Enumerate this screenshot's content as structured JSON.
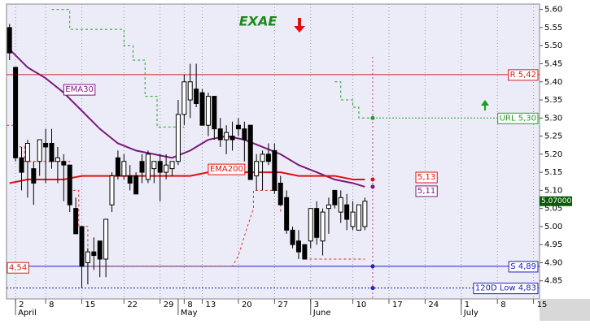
{
  "chart_data": {
    "type": "candlestick",
    "title": "EXAE",
    "open": [
      5.55,
      5.44,
      5.19,
      5.18,
      5.16,
      5.18,
      5.23,
      5.23,
      5.18,
      5.18,
      5.17,
      5.05,
      5.0,
      4.9,
      4.93,
      4.96,
      4.91,
      5.06,
      5.19,
      5.14,
      5.14,
      5.14,
      5.18,
      5.13,
      5.16,
      5.18,
      5.15,
      5.16,
      5.18,
      5.31,
      5.35,
      5.38,
      5.37,
      5.28,
      5.36,
      5.27,
      5.24,
      5.25,
      5.28,
      5.27,
      5.28,
      5.14,
      5.18,
      5.2,
      5.21,
      5.12,
      5.08,
      4.99,
      4.96,
      4.95,
      4.96,
      5.05,
      4.96,
      5.05,
      5.1,
      5.04,
      5.06,
      5.0,
      4.99,
      5.0
    ],
    "high": [
      5.56,
      5.44,
      5.22,
      5.24,
      5.18,
      5.24,
      5.27,
      5.27,
      5.22,
      5.2,
      5.17,
      5.08,
      5.0,
      4.94,
      4.97,
      4.96,
      5.02,
      5.15,
      5.21,
      5.2,
      5.17,
      5.15,
      5.2,
      5.21,
      5.18,
      5.2,
      5.2,
      5.18,
      5.35,
      5.42,
      5.45,
      5.45,
      5.38,
      5.37,
      5.36,
      5.3,
      5.28,
      5.29,
      5.3,
      5.29,
      5.28,
      5.2,
      5.21,
      5.23,
      5.23,
      5.14,
      5.1,
      5.0,
      4.99,
      4.95,
      5.05,
      5.07,
      5.05,
      5.08,
      5.1,
      5.1,
      5.09,
      5.07,
      5.06,
      5.08
    ],
    "low": [
      5.46,
      5.18,
      5.1,
      5.08,
      5.06,
      5.14,
      5.12,
      5.16,
      5.12,
      5.07,
      5.04,
      4.98,
      4.83,
      4.84,
      4.88,
      4.86,
      4.86,
      5.04,
      5.13,
      5.13,
      5.1,
      5.09,
      5.12,
      5.12,
      5.12,
      5.07,
      5.13,
      5.14,
      5.17,
      5.28,
      5.3,
      5.33,
      5.28,
      5.25,
      5.24,
      5.22,
      5.2,
      5.21,
      5.25,
      5.18,
      5.13,
      5.1,
      5.1,
      5.17,
      5.09,
      5.06,
      4.98,
      4.94,
      4.91,
      4.91,
      4.94,
      4.95,
      4.92,
      4.98,
      5.05,
      5.01,
      4.99,
      4.99,
      4.99,
      4.99
    ],
    "close": [
      5.48,
      5.19,
      5.15,
      5.23,
      5.12,
      5.24,
      5.22,
      5.18,
      5.19,
      5.17,
      5.06,
      4.98,
      4.89,
      4.93,
      4.92,
      4.91,
      5.02,
      5.14,
      5.14,
      5.18,
      5.12,
      5.09,
      5.15,
      5.2,
      5.18,
      5.15,
      5.17,
      5.18,
      5.31,
      5.4,
      5.4,
      5.34,
      5.28,
      5.36,
      5.27,
      5.24,
      5.26,
      5.24,
      5.27,
      5.24,
      5.13,
      5.18,
      5.2,
      5.18,
      5.1,
      5.06,
      4.99,
      4.95,
      4.93,
      4.91,
      5.05,
      4.97,
      5.04,
      5.06,
      5.06,
      5.08,
      5.02,
      5.04,
      5.06,
      5.07
    ],
    "series": [
      {
        "name": "EMA30",
        "color": "#7a1a7a",
        "width": 2,
        "end_label": "5,11",
        "end_value": 5.11,
        "x": [
          0,
          3,
          6,
          9,
          12,
          15,
          18,
          21,
          24,
          27,
          30,
          33,
          36,
          39,
          42,
          45,
          48,
          51,
          54,
          57,
          59
        ],
        "values": [
          5.49,
          5.44,
          5.41,
          5.37,
          5.32,
          5.27,
          5.23,
          5.21,
          5.2,
          5.19,
          5.21,
          5.24,
          5.25,
          5.24,
          5.22,
          5.2,
          5.17,
          5.15,
          5.13,
          5.12,
          5.11
        ]
      },
      {
        "name": "EMA200",
        "color": "#e01010",
        "width": 2,
        "end_label": "5,13",
        "end_value": 5.13,
        "x": [
          0,
          3,
          6,
          9,
          12,
          15,
          18,
          21,
          24,
          27,
          30,
          33,
          36,
          39,
          42,
          45,
          48,
          51,
          54,
          57,
          59
        ],
        "values": [
          5.12,
          5.13,
          5.13,
          5.13,
          5.14,
          5.14,
          5.14,
          5.14,
          5.14,
          5.14,
          5.14,
          5.15,
          5.15,
          5.15,
          5.15,
          5.15,
          5.14,
          5.14,
          5.14,
          5.13,
          5.13
        ]
      },
      {
        "color": "#20a020",
        "width": 1,
        "dash": true,
        "x": [
          7,
          10,
          10,
          19,
          19,
          20.5,
          20.5,
          22.5,
          22.5,
          24.5,
          24.5,
          29,
          40,
          54,
          55,
          55,
          57,
          57,
          58,
          58,
          60.3
        ],
        "values": [
          5.6,
          5.6,
          5.545,
          5.545,
          5.5,
          5.5,
          5.46,
          5.46,
          5.36,
          5.36,
          5.275,
          5.275,
          null,
          5.4,
          5.4,
          5.35,
          5.35,
          5.33,
          5.33,
          5.3,
          5.3
        ]
      },
      {
        "color": "#e03030",
        "width": 1,
        "dash": true,
        "x": [
          -0.5,
          1,
          1,
          2.5,
          2.5,
          10,
          10,
          11.5,
          11.5,
          13,
          13,
          37,
          38,
          39.5,
          40.5,
          40.5,
          45,
          45,
          47,
          49,
          59
        ],
        "values": [
          5.28,
          5.28,
          5.22,
          5.22,
          5.18,
          5.18,
          5.1,
          5.1,
          5.0,
          5.0,
          4.89,
          4.89,
          4.92,
          5.0,
          5.05,
          5.1,
          5.1,
          5.04,
          null,
          4.91,
          4.91
        ]
      }
    ],
    "levels": [
      {
        "label": "R 5,42",
        "value": 5.42,
        "color": "#d02020",
        "style": "solid"
      },
      {
        "label": "URL 5,30",
        "value": 5.3,
        "color": "#20a020",
        "style": "dotted",
        "from_current": true,
        "dot": true
      },
      {
        "label": "S 4,89",
        "value": 4.89,
        "color": "#2020c0",
        "style": "solid",
        "dot": true
      },
      {
        "label": "120D Low 4,83",
        "value": 4.83,
        "color": "#2020c0",
        "style": "dotted",
        "dot": true
      }
    ],
    "left_label": "4,54",
    "price_tag": {
      "value": 5.07,
      "label": "5.07000"
    },
    "current_index": 60.3,
    "xlim": [
      -0.5,
      88
    ],
    "ylim": [
      4.8,
      5.615
    ],
    "yticks": [
      {
        "value": 5.6,
        "label": "5.60"
      },
      {
        "value": 5.55,
        "label": "5.55"
      },
      {
        "value": 5.5,
        "label": "5.50"
      },
      {
        "value": 5.45,
        "label": "5.45"
      },
      {
        "value": 5.4,
        "label": "5.40"
      },
      {
        "value": 5.35,
        "label": "5.35"
      },
      {
        "value": 5.3,
        "label": "5.30"
      },
      {
        "value": 5.25,
        "label": "5.25"
      },
      {
        "value": 5.2,
        "label": "5.20"
      },
      {
        "value": 5.15,
        "label": "5.15"
      },
      {
        "value": 5.1,
        "label": "5.10"
      },
      {
        "value": 5.05,
        "label": "5.05"
      },
      {
        "value": 5.0,
        "label": "5.00"
      },
      {
        "value": 4.95,
        "label": "4.95"
      },
      {
        "value": 4.9,
        "label": "4.90"
      },
      {
        "value": 4.85,
        "label": "4.85"
      }
    ],
    "xticks": [
      {
        "value": 1,
        "label": "2"
      },
      {
        "value": 6,
        "label": "8"
      },
      {
        "value": 12,
        "label": "15"
      },
      {
        "value": 19,
        "label": "22"
      },
      {
        "value": 25,
        "label": "29"
      },
      {
        "value": 29,
        "label": "8"
      },
      {
        "value": 32,
        "label": "13"
      },
      {
        "value": 38,
        "label": "20"
      },
      {
        "value": 44,
        "label": "27"
      },
      {
        "value": 50,
        "label": "3"
      },
      {
        "value": 57,
        "label": "10"
      },
      {
        "value": 63,
        "label": "17"
      },
      {
        "value": 69,
        "label": "24"
      },
      {
        "value": 75,
        "label": "1"
      },
      {
        "value": 81,
        "label": "8"
      },
      {
        "value": 87,
        "label": "15"
      }
    ],
    "months": [
      {
        "value": 1,
        "label": "April"
      },
      {
        "value": 28,
        "label": "May"
      },
      {
        "value": 50,
        "label": "June"
      },
      {
        "value": 75,
        "label": "July"
      }
    ],
    "grid": "x"
  }
}
